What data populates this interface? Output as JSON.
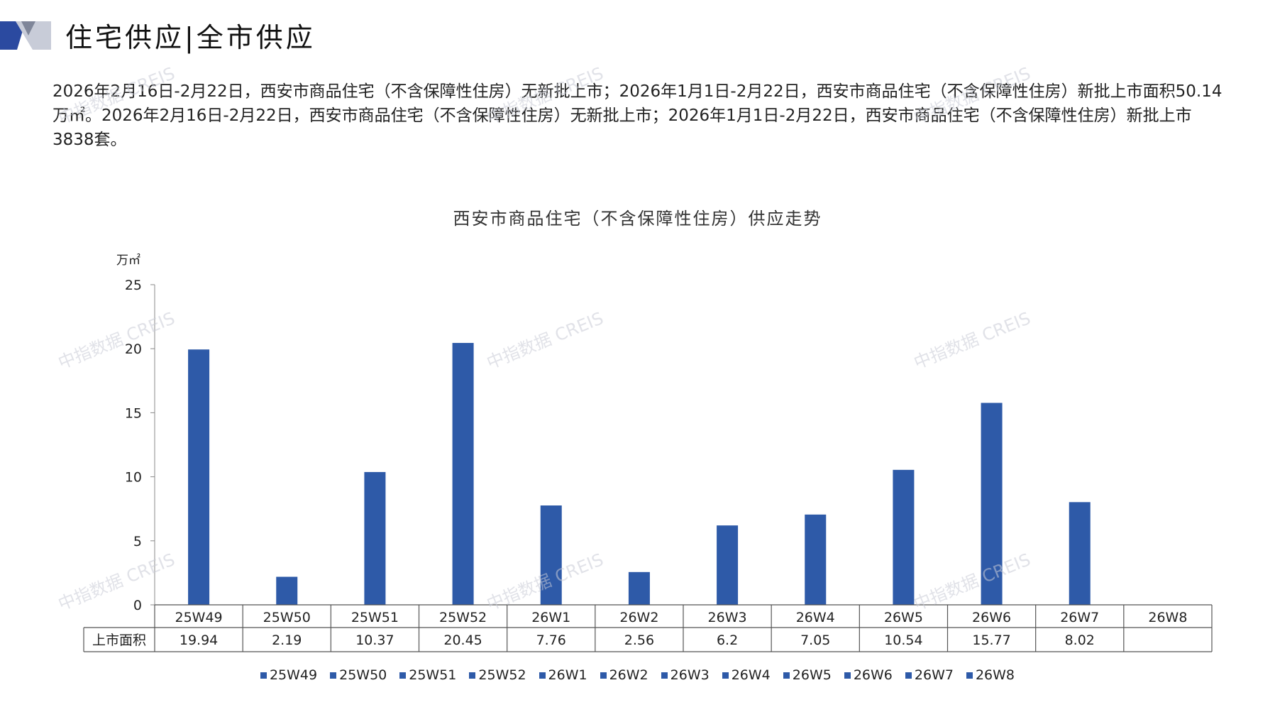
{
  "header": {
    "title": "住宅供应|全市供应"
  },
  "summary_text": "2026年2月16日-2月22日，西安市商品住宅（不含保障性住房）无新批上市；2026年1月1日-2月22日，西安市商品住宅（不含保障性住房）新批上市面积50.14万㎡。2026年2月16日-2月22日，西安市商品住宅（不含保障性住房）无新批上市；2026年1月1日-2月22日，西安市商品住宅（不含保障性住房）新批上市3838套。",
  "watermark_text": "中指数据 CREIS",
  "colors": {
    "bar": "#2e5aa8",
    "header_dark": "#2b4aa0",
    "header_light": "#c8ccd8"
  },
  "chart_data": {
    "type": "bar",
    "title": "西安市商品住宅（不含保障性住房）供应走势",
    "unit": "万㎡",
    "categories": [
      "25W49",
      "25W50",
      "25W51",
      "25W52",
      "26W1",
      "26W2",
      "26W3",
      "26W4",
      "26W5",
      "26W6",
      "26W7",
      "26W8"
    ],
    "series": [
      {
        "name": "上市面积",
        "values": [
          19.94,
          2.19,
          10.37,
          20.45,
          7.76,
          2.56,
          6.2,
          7.05,
          10.54,
          15.77,
          8.02,
          null
        ],
        "table_labels": [
          "19.94",
          "2.19",
          "10.37",
          "20.45",
          "7.76",
          "2.56",
          "6.2",
          "7.05",
          "10.54",
          "15.77",
          "8.02",
          ""
        ]
      }
    ],
    "ylim": [
      0,
      25
    ],
    "yticks": [
      0,
      5,
      10,
      15,
      20,
      25
    ],
    "legend": [
      "25W49",
      "25W50",
      "25W51",
      "25W52",
      "26W1",
      "26W2",
      "26W3",
      "26W4",
      "26W5",
      "26W6",
      "26W7",
      "26W8"
    ],
    "legend_placement": "bottom",
    "data_table": true
  }
}
